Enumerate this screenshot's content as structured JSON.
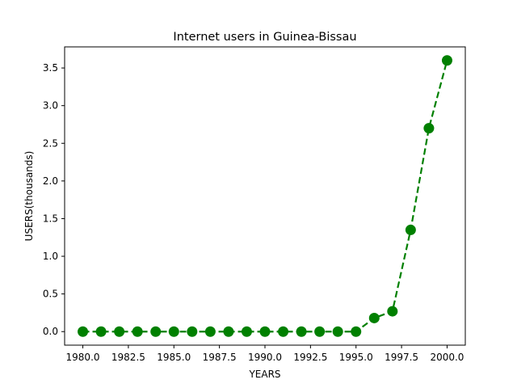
{
  "chart_data": {
    "type": "line",
    "title": "Internet users in Guinea-Bissau",
    "xlabel": "YEARS",
    "ylabel": "USERS(thousands)",
    "x": [
      1980,
      1981,
      1982,
      1983,
      1984,
      1985,
      1986,
      1987,
      1988,
      1989,
      1990,
      1991,
      1992,
      1993,
      1994,
      1995,
      1996,
      1997,
      1998,
      1999,
      2000
    ],
    "series": [
      {
        "values": [
          0,
          0,
          0,
          0,
          0,
          0,
          0,
          0,
          0,
          0,
          0,
          0,
          0,
          0,
          0,
          0,
          0.18,
          0.27,
          1.35,
          2.7,
          3.6
        ],
        "color": "#008000",
        "line_style": "dashed",
        "marker": "circle"
      }
    ],
    "xlim": [
      1979,
      2001
    ],
    "ylim": [
      -0.18,
      3.78
    ],
    "x_ticks": [
      1980.0,
      1982.5,
      1985.0,
      1987.5,
      1990.0,
      1992.5,
      1995.0,
      1997.5,
      2000.0
    ],
    "x_tick_labels": [
      "1980.0",
      "1982.5",
      "1985.0",
      "1987.5",
      "1990.0",
      "1992.5",
      "1995.0",
      "1997.5",
      "2000.0"
    ],
    "y_ticks": [
      0.0,
      0.5,
      1.0,
      1.5,
      2.0,
      2.5,
      3.0,
      3.5
    ],
    "y_tick_labels": [
      "0.0",
      "0.5",
      "1.0",
      "1.5",
      "2.0",
      "2.5",
      "3.0",
      "3.5"
    ],
    "grid": false,
    "legend": "none"
  }
}
